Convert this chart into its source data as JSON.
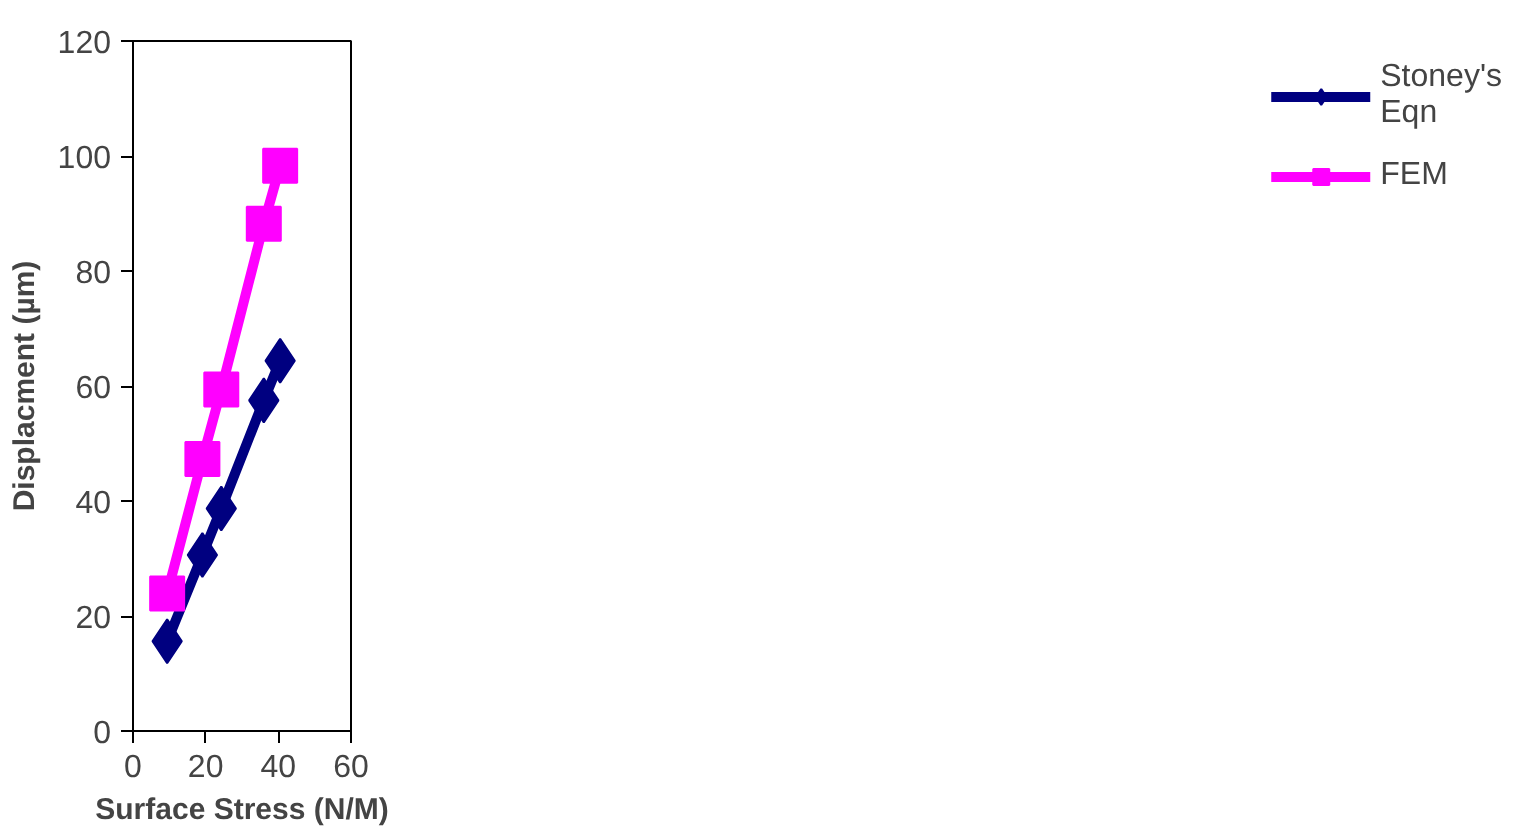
{
  "chart_data": {
    "type": "line",
    "xlabel": "Surface Stress (N/M)",
    "ylabel": "Displacment (µm)",
    "xlim": [
      0,
      60
    ],
    "xticks": [
      0,
      20,
      40,
      60
    ],
    "ylim": [
      0,
      120
    ],
    "yticks": [
      0,
      20,
      40,
      60,
      80,
      100,
      120
    ],
    "grid": false,
    "legend": "right",
    "series": [
      {
        "name": "Stoney's Eqn",
        "color": "#000080",
        "marker": "diamond",
        "x": [
          9.4,
          19.1,
          24.3,
          36.0,
          40.5
        ],
        "values": [
          15.6,
          30.6,
          38.7,
          57.5,
          64.4
        ]
      },
      {
        "name": "FEM",
        "color": "#ff00ff",
        "marker": "square",
        "x": [
          9.4,
          19.1,
          24.3,
          36.0,
          40.5
        ],
        "values": [
          23.9,
          47.3,
          59.4,
          88.2,
          98.3
        ]
      }
    ]
  }
}
